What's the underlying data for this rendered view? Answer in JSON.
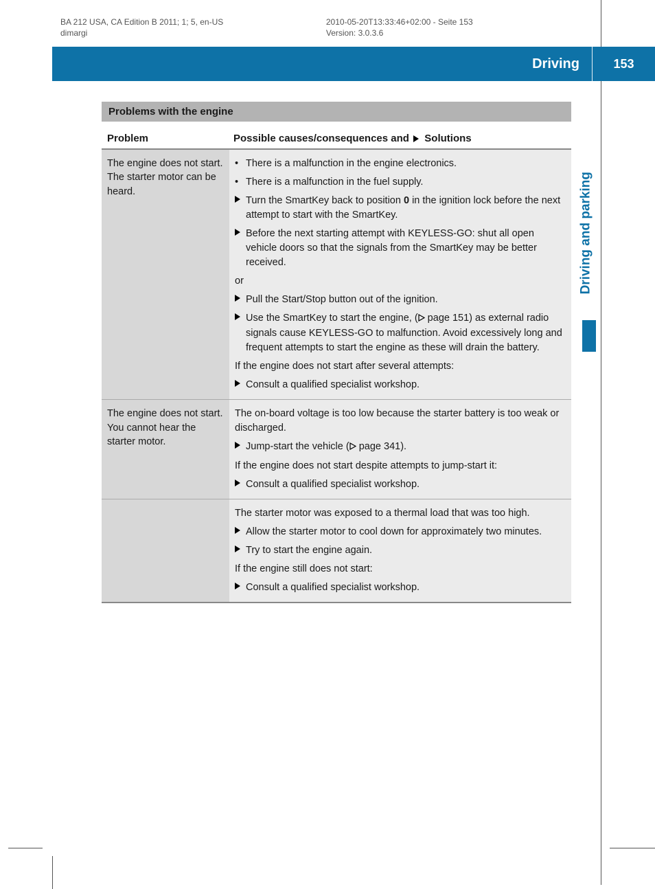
{
  "meta": {
    "edition": "BA 212 USA, CA Edition B 2011; 1; 5, en-US",
    "user": "dimargi",
    "timestamp": "2010-05-20T13:33:46+02:00 - Seite 153",
    "version": "Version: 3.0.3.6"
  },
  "header": {
    "title": "Driving",
    "page": "153"
  },
  "sideTab": "Driving and parking",
  "section": {
    "title": "Problems with the engine",
    "col1": "Problem",
    "col2a": "Possible causes/consequences and ",
    "col2b": " Solutions"
  },
  "rows": [
    {
      "problem": "The engine does not start. The starter motor can be heard.",
      "blocks": [
        {
          "type": "bullet",
          "text": "There is a malfunction in the engine electronics."
        },
        {
          "type": "bullet",
          "text": "There is a malfunction in the fuel supply."
        },
        {
          "type": "action",
          "parts": [
            "Turn the SmartKey back to position ",
            {
              "bold": "0"
            },
            " in the ignition lock before the next attempt to start with the SmartKey."
          ]
        },
        {
          "type": "action",
          "text": "Before the next starting attempt with KEYLESS-GO: shut all open vehicle doors so that the signals from the SmartKey may be better received."
        },
        {
          "type": "or",
          "text": "or"
        },
        {
          "type": "action",
          "text": "Pull the Start/Stop button out of the ignition."
        },
        {
          "type": "action",
          "parts": [
            "Use the SmartKey to start the engine, (",
            {
              "ref": true
            },
            " page 151) as external radio signals cause KEYLESS-GO to malfunction. Avoid excessively long and frequent attempts to start the engine as these will drain the battery."
          ]
        },
        {
          "type": "plain",
          "text": "If the engine does not start after several attempts:"
        },
        {
          "type": "action",
          "text": "Consult a qualified specialist workshop."
        }
      ]
    },
    {
      "problem": "The engine does not start. You cannot hear the starter motor.",
      "blocks": [
        {
          "type": "plain",
          "text": "The on-board voltage is too low because the starter battery is too weak or discharged."
        },
        {
          "type": "action",
          "parts": [
            "Jump-start the vehicle (",
            {
              "ref": true
            },
            " page 341)."
          ]
        },
        {
          "type": "plain",
          "text": "If the engine does not start despite attempts to jump-start it:"
        },
        {
          "type": "action",
          "text": "Consult a qualified specialist workshop."
        }
      ],
      "blocks2": [
        {
          "type": "plain",
          "text": "The starter motor was exposed to a thermal load that was too high."
        },
        {
          "type": "action",
          "text": "Allow the starter motor to cool down for approximately two minutes."
        },
        {
          "type": "action",
          "text": "Try to start the engine again."
        },
        {
          "type": "plain",
          "text": "If the engine still does not start:"
        },
        {
          "type": "action",
          "text": "Consult a qualified specialist workshop."
        }
      ]
    }
  ],
  "colors": {
    "blue": "#0e72a7",
    "grayDark": "#b3b3b3",
    "grayProblem": "#d7d7d7",
    "graySolution": "#ebebeb"
  }
}
